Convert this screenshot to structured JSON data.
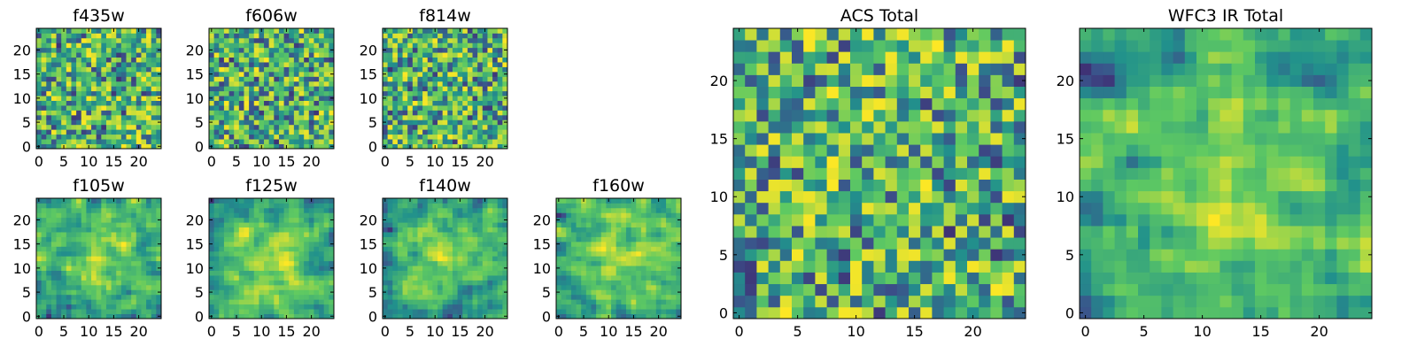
{
  "figure": {
    "colormap": [
      "#440154",
      "#3b528b",
      "#21918c",
      "#5ec962",
      "#fde725"
    ]
  },
  "chart_data": [
    {
      "type": "heatmap",
      "title": "f435w",
      "grid_size": 25,
      "xlim": [
        -0.5,
        24.5
      ],
      "ylim": [
        -0.5,
        24.5
      ],
      "xticks": [
        0,
        5,
        10,
        15,
        20
      ],
      "yticks": [
        0,
        5,
        10,
        15,
        20
      ],
      "texture": "noise",
      "seed": 11
    },
    {
      "type": "heatmap",
      "title": "f606w",
      "grid_size": 25,
      "xlim": [
        -0.5,
        24.5
      ],
      "ylim": [
        -0.5,
        24.5
      ],
      "xticks": [
        0,
        5,
        10,
        15,
        20
      ],
      "yticks": [
        0,
        5,
        10,
        15,
        20
      ],
      "texture": "noise",
      "seed": 23
    },
    {
      "type": "heatmap",
      "title": "f814w",
      "grid_size": 25,
      "xlim": [
        -0.5,
        24.5
      ],
      "ylim": [
        -0.5,
        24.5
      ],
      "xticks": [
        0,
        5,
        10,
        15,
        20
      ],
      "yticks": [
        0,
        5,
        10,
        15,
        20
      ],
      "texture": "noise",
      "seed": 37
    },
    {
      "type": "heatmap",
      "title": "f105w",
      "grid_size": 25,
      "xlim": [
        -0.5,
        24.5
      ],
      "ylim": [
        -0.5,
        24.5
      ],
      "xticks": [
        0,
        5,
        10,
        15,
        20
      ],
      "yticks": [
        0,
        5,
        10,
        15,
        20
      ],
      "texture": "smooth",
      "seed": 41
    },
    {
      "type": "heatmap",
      "title": "f125w",
      "grid_size": 25,
      "xlim": [
        -0.5,
        24.5
      ],
      "ylim": [
        -0.5,
        24.5
      ],
      "xticks": [
        0,
        5,
        10,
        15,
        20
      ],
      "yticks": [
        0,
        5,
        10,
        15,
        20
      ],
      "texture": "smooth",
      "seed": 53
    },
    {
      "type": "heatmap",
      "title": "f140w",
      "grid_size": 25,
      "xlim": [
        -0.5,
        24.5
      ],
      "ylim": [
        -0.5,
        24.5
      ],
      "xticks": [
        0,
        5,
        10,
        15,
        20
      ],
      "yticks": [
        0,
        5,
        10,
        15,
        20
      ],
      "texture": "smooth",
      "seed": 67
    },
    {
      "type": "heatmap",
      "title": "f160w",
      "grid_size": 25,
      "xlim": [
        -0.5,
        24.5
      ],
      "ylim": [
        -0.5,
        24.5
      ],
      "xticks": [
        0,
        5,
        10,
        15,
        20
      ],
      "yticks": [
        0,
        5,
        10,
        15,
        20
      ],
      "texture": "smooth",
      "seed": 79
    },
    {
      "type": "heatmap",
      "title": "ACS Total",
      "grid_size": 25,
      "xlim": [
        -0.5,
        24.5
      ],
      "ylim": [
        -0.5,
        24.5
      ],
      "xticks": [
        0,
        5,
        10,
        15,
        20
      ],
      "yticks": [
        0,
        5,
        10,
        15,
        20
      ],
      "texture": "noise",
      "seed": 97
    },
    {
      "type": "heatmap",
      "title": "WFC3 IR Total",
      "grid_size": 25,
      "xlim": [
        -0.5,
        24.5
      ],
      "ylim": [
        -0.5,
        24.5
      ],
      "xticks": [
        0,
        5,
        10,
        15,
        20
      ],
      "yticks": [
        0,
        5,
        10,
        15,
        20
      ],
      "texture": "smooth",
      "seed": 131
    }
  ]
}
